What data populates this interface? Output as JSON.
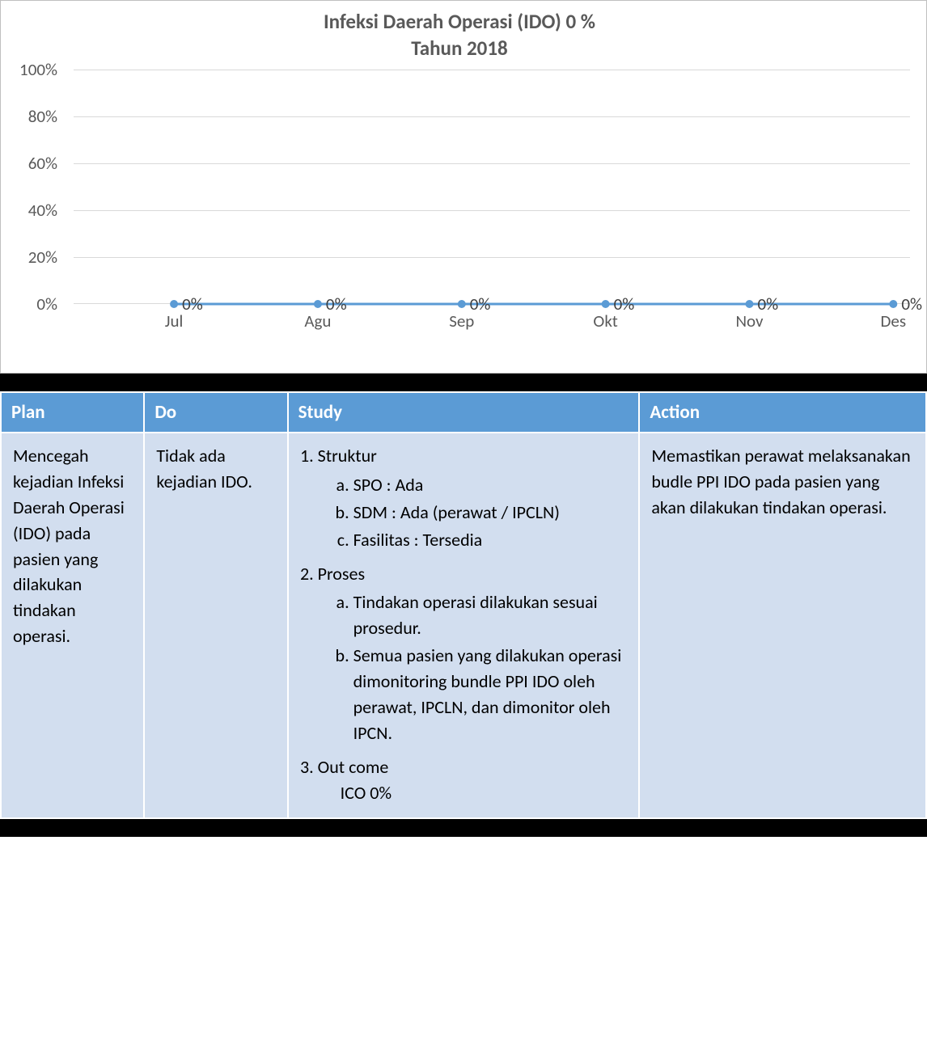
{
  "chart": {
    "type": "line",
    "title_line1": "Infeksi Daerah Operasi (IDO) 0 %",
    "title_line2": "Tahun 2018",
    "title_color": "#595959",
    "title_fontsize": 25,
    "categories": [
      "Jul",
      "Agu",
      "Sep",
      "Okt",
      "Nov",
      "Des"
    ],
    "values_pct": [
      0,
      0,
      0,
      0,
      0,
      0
    ],
    "data_labels": [
      "0%",
      "0%",
      "0%",
      "0%",
      "0%",
      "0%"
    ],
    "ylim": [
      0,
      100
    ],
    "ytick_step": 20,
    "ytick_labels": [
      "0%",
      "20%",
      "40%",
      "60%",
      "80%",
      "100%"
    ],
    "line_color": "#5b9bd5",
    "line_width": 3,
    "marker_style": "circle",
    "marker_radius": 5,
    "marker_color": "#5b9bd5",
    "axis_label_color": "#595959",
    "axis_fontsize": 21,
    "grid_color": "#d9d9d9",
    "background_color": "#ffffff",
    "border_color": "#c0c0c0"
  },
  "table": {
    "header_bg": "#5b9bd5",
    "header_text_color": "#ffffff",
    "cell_bg": "#d2deef",
    "border_color": "#ffffff",
    "col_widths_pct": [
      15.5,
      15.5,
      38,
      31
    ],
    "headers": [
      "Plan",
      "Do",
      "Study",
      "Action"
    ],
    "plan": "Mencegah kejadian Infeksi Daerah Operasi (IDO) pada pasien yang dilakukan tindakan operasi.",
    "do": "Tidak ada kejadian IDO.",
    "study": {
      "s1_title": "Struktur",
      "s1_a": "SPO : Ada",
      "s1_b": "SDM : Ada (perawat / IPCLN)",
      "s1_c": "Fasilitas : Tersedia",
      "s2_title": "Proses",
      "s2_a": "Tindakan operasi dilakukan sesuai prosedur.",
      "s2_b": "Semua pasien yang dilakukan operasi dimonitoring bundle PPI IDO oleh perawat, IPCLN, dan dimonitor oleh IPCN.",
      "s3_title": "Out come",
      "s3_outcome": "ICO  0%"
    },
    "action": "Memastikan perawat melaksanakan budle PPI IDO pada pasien yang akan dilakukan tindakan operasi."
  }
}
